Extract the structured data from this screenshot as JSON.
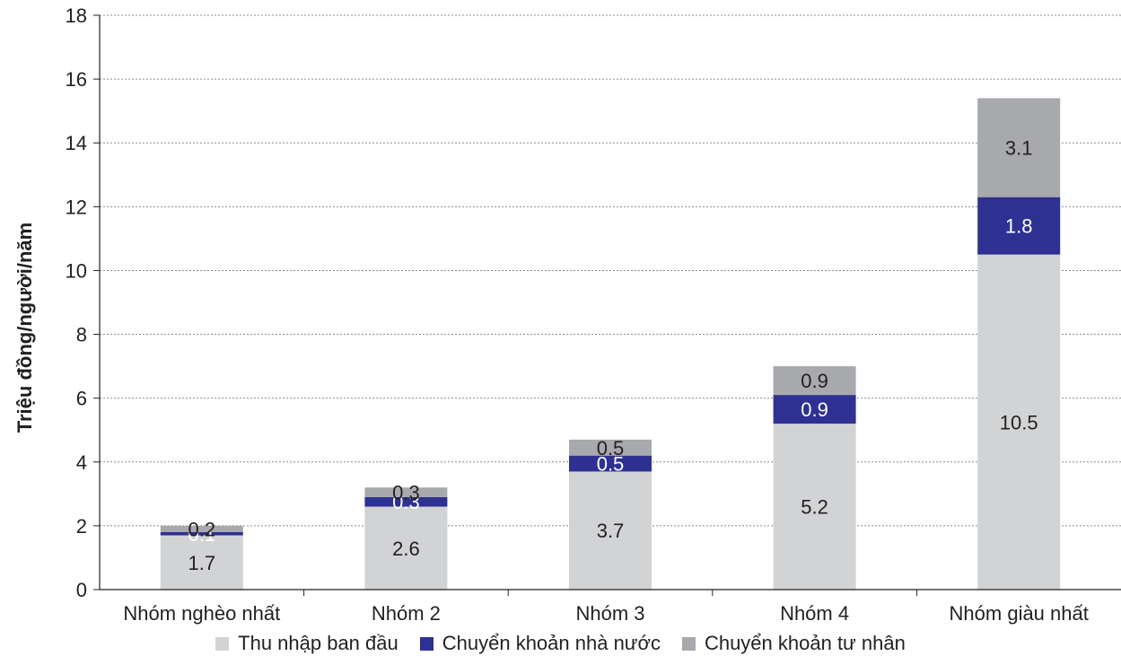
{
  "chart_data": {
    "type": "bar",
    "stacked": true,
    "categories": [
      "Nhóm nghèo nhất",
      "Nhóm 2",
      "Nhóm 3",
      "Nhóm 4",
      "Nhóm giàu nhất"
    ],
    "series": [
      {
        "name": "Thu nhập ban đầu",
        "color": "#d2d3d5",
        "label_color": "#231f20",
        "values": [
          1.7,
          2.6,
          3.7,
          5.2,
          10.5
        ],
        "labels": [
          "1.7",
          "2.6",
          "3.7",
          "5.2",
          "10.5"
        ]
      },
      {
        "name": "Chuyển khoản nhà nước",
        "color": "#2e3192",
        "label_color": "#ffffff",
        "values": [
          0.1,
          0.3,
          0.5,
          0.9,
          1.8
        ],
        "labels": [
          "0.1",
          "0.3",
          "0.5",
          "0.9",
          "1.8"
        ]
      },
      {
        "name": "Chuyển khoản tư nhân",
        "color": "#a7a9ac",
        "label_color": "#231f20",
        "values": [
          0.2,
          0.3,
          0.5,
          0.9,
          3.1
        ],
        "labels": [
          "0.2",
          "0.3",
          "0.5",
          "0.9",
          "3.1"
        ]
      }
    ],
    "ylabel": "Triệu đồng/người/năm",
    "xlabel": "",
    "ylim": [
      0,
      18
    ],
    "yticks": [
      "0",
      "2",
      "4",
      "6",
      "8",
      "10",
      "12",
      "14",
      "16",
      "18"
    ],
    "grid": true,
    "legend_position": "bottom"
  }
}
